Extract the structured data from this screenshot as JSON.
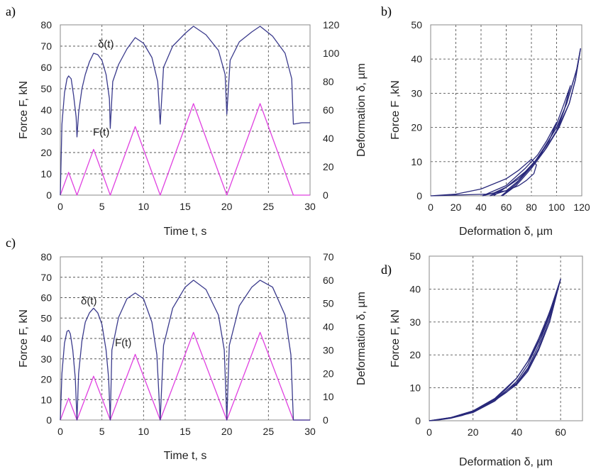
{
  "chart_data": [
    {
      "panel": "a)",
      "type": "line",
      "xlabel": "Time t, s",
      "ylabel": "Force F, kN",
      "ylabel_right": "Deformation δ, µm",
      "xlim": [
        0,
        30
      ],
      "ylim": [
        0,
        80
      ],
      "ylim_right": [
        0,
        120
      ],
      "xticks": [
        0,
        5,
        10,
        15,
        20,
        25,
        30
      ],
      "yticks": [
        0,
        10,
        20,
        30,
        40,
        50,
        60,
        70,
        80
      ],
      "yticks_right": [
        0,
        20,
        40,
        60,
        80,
        100,
        120
      ],
      "grid": true,
      "series": [
        {
          "name": "F(t)",
          "axis": "left",
          "color": "#e040e0",
          "x": [
            0,
            1,
            2,
            4,
            6,
            9,
            12,
            16,
            20,
            24,
            28,
            30
          ],
          "y": [
            0,
            10.7,
            0,
            21.5,
            0,
            32.2,
            0,
            43,
            0,
            43,
            0,
            0
          ]
        },
        {
          "name": "δ(t)",
          "axis": "right",
          "color": "#3a3a8c",
          "x": [
            0,
            0.2,
            0.5,
            0.8,
            1.0,
            1.3,
            1.6,
            1.9,
            2.0,
            2.2,
            2.6,
            3.0,
            3.5,
            4.0,
            4.5,
            5.0,
            5.5,
            5.9,
            6.0,
            6.3,
            7.0,
            8.0,
            9.0,
            10.0,
            11.0,
            11.7,
            12.0,
            12.4,
            13.5,
            15.0,
            16.0,
            17.5,
            19.0,
            19.8,
            20.0,
            20.4,
            21.5,
            23.0,
            24.0,
            25.5,
            27.0,
            27.8,
            28.0,
            29.0,
            30.0
          ],
          "y": [
            0,
            50,
            72,
            82,
            84,
            82,
            70,
            55,
            41,
            58,
            75,
            85,
            94,
            100,
            99,
            95,
            85,
            68,
            47,
            80,
            92,
            103,
            111,
            107,
            97,
            80,
            50,
            90,
            105,
            114,
            119,
            113,
            102,
            85,
            57,
            95,
            108,
            115,
            119,
            112,
            100,
            82,
            50,
            51,
            51
          ]
        }
      ],
      "annotations": [
        "δ(t)",
        "F(t)"
      ]
    },
    {
      "panel": "b)",
      "type": "line",
      "xlabel": "Deformation δ, µm",
      "ylabel": "Force F ,kN",
      "xlim": [
        0,
        120
      ],
      "ylim": [
        0,
        50
      ],
      "xticks": [
        0,
        20,
        40,
        60,
        80,
        100,
        120
      ],
      "yticks": [
        0,
        10,
        20,
        30,
        40,
        50
      ],
      "grid": true,
      "series": [
        {
          "color": "#28287a",
          "x": [
            0,
            20,
            40,
            60,
            70,
            80,
            84,
            82,
            76,
            70,
            60,
            45,
            0
          ],
          "y": [
            0,
            0.5,
            2,
            5,
            7.5,
            10.7,
            9,
            6.5,
            4.5,
            3,
            1.5,
            0.5,
            0
          ]
        },
        {
          "color": "#28287a",
          "x": [
            41,
            60,
            75,
            85,
            92,
            100,
            94,
            87,
            80,
            70,
            60,
            50,
            41
          ],
          "y": [
            0,
            3,
            8,
            12,
            16,
            21.5,
            16,
            12,
            8.5,
            5,
            2.5,
            0.8,
            0
          ]
        },
        {
          "color": "#28287a",
          "x": [
            47,
            60,
            75,
            90,
            100,
            106,
            111,
            105,
            100,
            95,
            88,
            80,
            70,
            60,
            47
          ],
          "y": [
            0,
            2.5,
            7,
            13,
            19,
            25,
            32.2,
            26,
            21,
            17,
            12.5,
            8.5,
            4.5,
            1.5,
            0
          ]
        },
        {
          "color": "#28287a",
          "x": [
            50,
            60,
            75,
            90,
            100,
            110,
            115,
            119,
            116,
            112,
            108,
            100,
            90,
            80,
            68,
            57
          ],
          "y": [
            0,
            2.5,
            7,
            13,
            19,
            27,
            34,
            43,
            37,
            32,
            27,
            20,
            14,
            8.5,
            3.5,
            0
          ]
        },
        {
          "color": "#28287a",
          "x": [
            57,
            68,
            80,
            92,
            102,
            110,
            115,
            119,
            116,
            112,
            108,
            100,
            90,
            80,
            68,
            56
          ],
          "y": [
            0,
            3,
            8,
            14,
            20,
            27,
            34,
            43,
            37,
            32,
            27,
            20,
            14,
            8.5,
            3.5,
            0
          ]
        }
      ]
    },
    {
      "panel": "c)",
      "type": "line",
      "xlabel": "Time t, s",
      "ylabel": "Force F, kN",
      "ylabel_right": "Deformation δ, µm",
      "xlim": [
        0,
        30
      ],
      "ylim": [
        0,
        80
      ],
      "ylim_right": [
        0,
        70
      ],
      "xticks": [
        0,
        5,
        10,
        15,
        20,
        25,
        30
      ],
      "yticks": [
        0,
        10,
        20,
        30,
        40,
        50,
        60,
        70,
        80
      ],
      "yticks_right": [
        0,
        10,
        20,
        30,
        40,
        50,
        60,
        70
      ],
      "grid": true,
      "series": [
        {
          "name": "F(t)",
          "axis": "left",
          "color": "#e040e0",
          "x": [
            0,
            1,
            2,
            4,
            6,
            9,
            12,
            16,
            20,
            24,
            28,
            30
          ],
          "y": [
            0,
            10.7,
            0,
            21.5,
            0,
            32.2,
            0,
            43,
            0,
            43,
            0,
            0
          ]
        },
        {
          "name": "δ(t)",
          "axis": "right",
          "color": "#3a3a8c",
          "x": [
            0,
            0.2,
            0.5,
            0.8,
            1.0,
            1.2,
            1.5,
            1.8,
            2.0,
            2.2,
            2.6,
            3.0,
            3.5,
            4.0,
            4.5,
            5.0,
            5.5,
            5.8,
            6.0,
            6.2,
            7.0,
            8.0,
            9.0,
            10.0,
            11.0,
            11.6,
            12.0,
            12.4,
            13.5,
            15.0,
            16.0,
            17.5,
            19.0,
            19.7,
            20.0,
            20.3,
            21.5,
            23.0,
            24.0,
            25.5,
            27.0,
            27.7,
            28.0,
            30.0
          ],
          "y": [
            0,
            20,
            33,
            38,
            38.5,
            37,
            30,
            18,
            0,
            20,
            34,
            42,
            46,
            48,
            46,
            41,
            30,
            18,
            0,
            30,
            44,
            52,
            54.5,
            52,
            42,
            28,
            0,
            32,
            48,
            57,
            60,
            56,
            45,
            30,
            0,
            32,
            49,
            57,
            60,
            57,
            45,
            28,
            0,
            0
          ]
        }
      ],
      "annotations": [
        "δ(t)",
        "F(t)"
      ]
    },
    {
      "panel": "d)",
      "type": "line",
      "xlabel": "Deformation δ, µm",
      "ylabel": "Force F, kN",
      "xlim": [
        0,
        70
      ],
      "ylim": [
        0,
        50
      ],
      "xticks": [
        0,
        20,
        40,
        60
      ],
      "yticks": [
        0,
        10,
        20,
        30,
        40,
        50
      ],
      "grid": true,
      "series": [
        {
          "color": "#28287a",
          "x": [
            0,
            5,
            10,
            15,
            20,
            25,
            30,
            35,
            40,
            45,
            50,
            55,
            60,
            58,
            55,
            50,
            45,
            40,
            35,
            30,
            25,
            20,
            15,
            10,
            5,
            0
          ],
          "y": [
            0,
            0.3,
            0.9,
            1.7,
            2.8,
            4.3,
            6.2,
            8.5,
            11.3,
            15.5,
            22,
            31,
            43,
            39,
            33,
            25,
            18,
            13,
            9.5,
            6.7,
            4.5,
            2.8,
            1.6,
            0.8,
            0.3,
            0
          ]
        },
        {
          "color": "#28287a",
          "x": [
            0,
            10,
            20,
            30,
            40,
            45,
            50,
            55,
            60,
            56,
            50,
            45,
            40,
            30,
            20,
            10,
            0
          ],
          "y": [
            0,
            1,
            3,
            6.5,
            11.5,
            16,
            23,
            32,
            43,
            35,
            24,
            17,
            12,
            6,
            2.5,
            0.8,
            0
          ]
        },
        {
          "color": "#28287a",
          "x": [
            0,
            10,
            20,
            30,
            40,
            45,
            50,
            55,
            60,
            57,
            52,
            46,
            40,
            30,
            20,
            10,
            0
          ],
          "y": [
            0,
            0.9,
            2.7,
            6.2,
            11,
            15,
            21.5,
            30,
            43,
            36,
            27,
            19,
            13,
            6.8,
            3,
            1,
            0
          ]
        }
      ]
    }
  ],
  "colors": {
    "force": "#e040e0",
    "deformation": "#3a3a8c",
    "loop": "#28287a",
    "grid": "#555555"
  }
}
